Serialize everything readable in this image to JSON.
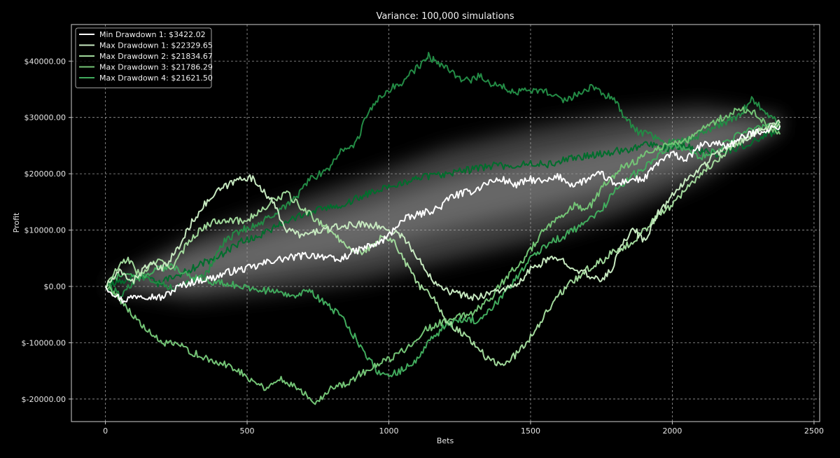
{
  "chart_data": {
    "type": "line",
    "title": "Variance: 100,000 simulations",
    "xlabel": "Bets",
    "ylabel": "Profit",
    "xlim": [
      -120,
      2520
    ],
    "ylim": [
      -24000,
      46500
    ],
    "x_ticks": [
      0,
      500,
      1000,
      1500,
      2000,
      2500
    ],
    "x_tick_labels": [
      "0",
      "500",
      "1000",
      "1500",
      "2000",
      "2500"
    ],
    "y_ticks": [
      -20000,
      -10000,
      0,
      10000,
      20000,
      30000,
      40000
    ],
    "y_tick_labels": [
      "$-20000.00",
      "$-10000.00",
      "$0.00",
      "$10000.00",
      "$20000.00",
      "$30000.00",
      "$40000.00"
    ],
    "grid": true,
    "legend_position": "top-left",
    "background_band": {
      "x": [
        0,
        300,
        600,
        900,
        1200,
        1500,
        1800,
        2100,
        2380
      ],
      "center": [
        0,
        3000,
        6500,
        10000,
        14500,
        18000,
        21500,
        25500,
        29000
      ],
      "spread": [
        0,
        5500,
        7500,
        9000,
        10000,
        10000,
        9000,
        6500,
        1000
      ]
    },
    "series": [
      {
        "name": "Min Drawdown 1: $3422.02",
        "color": "#ffffff",
        "x": [
          0,
          60,
          120,
          200,
          260,
          320,
          380,
          430,
          480,
          530,
          580,
          640,
          700,
          760,
          820,
          870,
          920,
          960,
          1000,
          1030,
          1060,
          1120,
          1180,
          1220,
          1260,
          1300,
          1350,
          1400,
          1450,
          1500,
          1550,
          1600,
          1650,
          1700,
          1750,
          1800,
          1850,
          1900,
          1950,
          2000,
          2050,
          2100,
          2150,
          2200,
          2250,
          2300,
          2350,
          2380
        ],
        "y": [
          0,
          -2500,
          -1500,
          -2000,
          0,
          1000,
          1500,
          2500,
          3000,
          3500,
          4500,
          5000,
          5500,
          5500,
          4500,
          6000,
          7000,
          7500,
          9000,
          11000,
          12000,
          13000,
          14000,
          16000,
          16500,
          17000,
          18500,
          19000,
          18000,
          19000,
          18500,
          19500,
          18000,
          19000,
          20000,
          18000,
          19000,
          19000,
          22000,
          23500,
          22500,
          25000,
          25500,
          25000,
          26500,
          27500,
          28000,
          28500
        ]
      },
      {
        "name": "Max Drawdown 1: $22329.65",
        "color": "#c7e9c0",
        "x": [
          0,
          50,
          100,
          150,
          200,
          260,
          300,
          340,
          400,
          450,
          490,
          520,
          560,
          600,
          640,
          700,
          760,
          820,
          880,
          940,
          1000,
          1050,
          1100,
          1160,
          1220,
          1300,
          1400,
          1450,
          1500,
          1550,
          1600,
          1650,
          1700,
          1740,
          1780,
          1820,
          1860,
          1900,
          1950,
          2000,
          2050,
          2100,
          2150,
          2200,
          2250,
          2300,
          2350,
          2380
        ],
        "y": [
          0,
          2500,
          1000,
          4000,
          3000,
          7000,
          11000,
          14000,
          17000,
          18500,
          19500,
          19000,
          17000,
          14000,
          10000,
          9000,
          10000,
          10500,
          11000,
          11000,
          10000,
          9000,
          5000,
          1000,
          -1000,
          -2000,
          -500,
          0,
          3000,
          4500,
          5000,
          3500,
          2000,
          1000,
          2500,
          7000,
          10500,
          8000,
          13000,
          16000,
          19000,
          21000,
          23500,
          25000,
          26000,
          27500,
          28500,
          29000
        ]
      },
      {
        "name": "Max Drawdown 2: $21834.67",
        "color": "#a1d99b",
        "x": [
          0,
          40,
          80,
          120,
          180,
          240,
          300,
          360,
          420,
          480,
          540,
          600,
          640,
          680,
          740,
          800,
          860,
          900,
          940,
          980,
          1020,
          1060,
          1100,
          1160,
          1200,
          1300,
          1350,
          1400,
          1450,
          1500,
          1550,
          1600,
          1650,
          1700,
          1750,
          1800,
          1850,
          1900,
          1950,
          2000,
          2050,
          2100,
          2150,
          2200,
          2250,
          2300,
          2350,
          2380
        ],
        "y": [
          0,
          3000,
          5000,
          2000,
          4500,
          3500,
          8500,
          11000,
          12000,
          11500,
          13000,
          15500,
          16500,
          14500,
          12000,
          9500,
          7000,
          6000,
          7000,
          9000,
          8000,
          4000,
          500,
          -2000,
          -6000,
          -10000,
          -13000,
          -14000,
          -12000,
          -9000,
          -5000,
          -1500,
          1000,
          3000,
          4500,
          6500,
          7500,
          10000,
          12500,
          14500,
          17500,
          20000,
          22000,
          24500,
          26000,
          27500,
          28000,
          28500
        ]
      },
      {
        "name": "Max Drawdown 3: $21786.29",
        "color": "#74c476",
        "x": [
          0,
          40,
          80,
          120,
          160,
          200,
          260,
          320,
          380,
          440,
          500,
          560,
          620,
          680,
          740,
          800,
          860,
          900,
          960,
          1000,
          1060,
          1120,
          1180,
          1240,
          1300,
          1360,
          1420,
          1480,
          1540,
          1600,
          1660,
          1700,
          1760,
          1820,
          1880,
          1940,
          2000,
          2060,
          2120,
          2180,
          2240,
          2300,
          2350,
          2380
        ],
        "y": [
          0,
          -1500,
          -4000,
          -6500,
          -8500,
          -10000,
          -10500,
          -12000,
          -13500,
          -14000,
          -16000,
          -18000,
          -16500,
          -18000,
          -20500,
          -18000,
          -17000,
          -15500,
          -14000,
          -13000,
          -11000,
          -8000,
          -6500,
          -5500,
          -4500,
          -2000,
          2000,
          5000,
          9500,
          12000,
          14500,
          13500,
          18000,
          21000,
          22500,
          24500,
          25500,
          26000,
          28500,
          30000,
          31500,
          30500,
          28000,
          27000
        ]
      },
      {
        "name": "Max Drawdown 4: $21621.50",
        "color": "#41ab5d",
        "x": [
          0,
          60,
          120,
          180,
          240,
          300,
          360,
          420,
          480,
          540,
          600,
          660,
          720,
          780,
          840,
          880,
          920,
          960,
          1000,
          1040,
          1080,
          1140,
          1200,
          1260,
          1320,
          1380,
          1440,
          1500,
          1560,
          1620,
          1680,
          1740,
          1800,
          1850,
          1900,
          1950,
          2000,
          2050,
          2100,
          2150,
          2200,
          2250,
          2300,
          2350,
          2380
        ],
        "y": [
          0,
          2500,
          1500,
          3000,
          3500,
          2000,
          1000,
          500,
          0,
          -500,
          -1000,
          -1500,
          -1000,
          -3000,
          -6000,
          -9000,
          -12000,
          -15000,
          -16000,
          -15000,
          -14000,
          -10000,
          -7000,
          -6000,
          -6000,
          -3000,
          1000,
          5000,
          7500,
          9000,
          11000,
          13000,
          17000,
          19500,
          21000,
          23500,
          25000,
          24500,
          23000,
          24000,
          26000,
          27500,
          28000,
          28500,
          29000
        ]
      },
      {
        "name": "",
        "color": "#238b45",
        "x": [
          0,
          60,
          120,
          180,
          240,
          300,
          360,
          420,
          480,
          540,
          600,
          660,
          720,
          780,
          840,
          880,
          920,
          960,
          1000,
          1040,
          1080,
          1120,
          1140,
          1160,
          1200,
          1240,
          1280,
          1320,
          1360,
          1400,
          1440,
          1500,
          1560,
          1620,
          1680,
          1720,
          1760,
          1800,
          1840,
          1880,
          1920,
          1960,
          2000,
          2060,
          2120,
          2180,
          2240,
          2280,
          2320,
          2360,
          2380
        ],
        "y": [
          0,
          -1500,
          2000,
          1000,
          -500,
          1000,
          2500,
          8000,
          10000,
          11000,
          13000,
          15000,
          19000,
          20500,
          24500,
          25000,
          30000,
          33000,
          35000,
          36000,
          38000,
          39500,
          41000,
          40000,
          39000,
          37000,
          36500,
          37500,
          36000,
          35500,
          34500,
          35000,
          34500,
          33000,
          34500,
          35500,
          34000,
          33000,
          29500,
          27500,
          27000,
          26000,
          25500,
          26000,
          27500,
          29000,
          30500,
          33500,
          31500,
          29500,
          28000
        ]
      },
      {
        "name": "",
        "color": "#006d2c",
        "x": [
          0,
          60,
          120,
          180,
          240,
          300,
          360,
          420,
          480,
          540,
          600,
          660,
          720,
          780,
          840,
          900,
          960,
          1020,
          1080,
          1140,
          1200,
          1260,
          1320,
          1380,
          1440,
          1500,
          1560,
          1620,
          1680,
          1740,
          1800,
          1860,
          1920,
          1980,
          2040,
          2100,
          2160,
          2220,
          2280,
          2340,
          2380
        ],
        "y": [
          0,
          1000,
          2000,
          500,
          1500,
          3000,
          4500,
          6000,
          8000,
          9000,
          10500,
          12000,
          13000,
          14000,
          14500,
          16000,
          17000,
          18000,
          19000,
          19500,
          20000,
          20500,
          21000,
          21500,
          21000,
          22000,
          21500,
          22500,
          23000,
          23500,
          24000,
          24500,
          25500,
          24500,
          25000,
          24000,
          23500,
          24500,
          25500,
          27000,
          28000
        ]
      }
    ]
  }
}
